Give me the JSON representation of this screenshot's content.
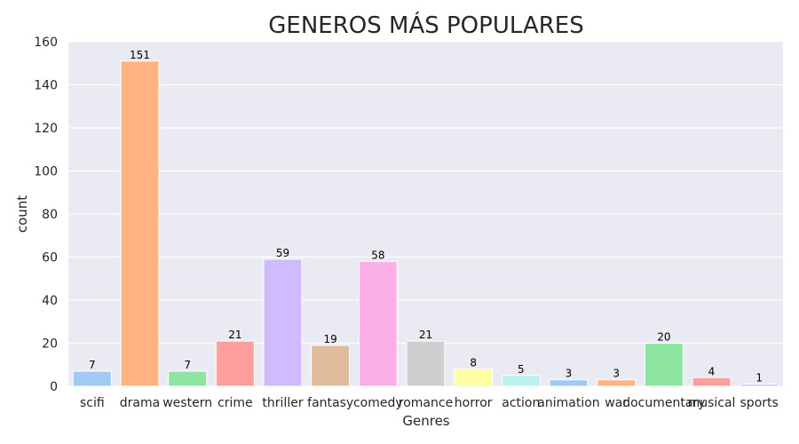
{
  "chart_data": {
    "type": "bar",
    "title": "GENEROS MÁS POPULARES",
    "xlabel": "Genres",
    "ylabel": "count",
    "categories": [
      "scifi",
      "drama",
      "western",
      "crime",
      "thriller",
      "fantasy",
      "comedy",
      "romance",
      "horror",
      "action",
      "animation",
      "war",
      "documentary",
      "musical",
      "sports"
    ],
    "values": [
      7,
      151,
      7,
      21,
      59,
      19,
      58,
      21,
      8,
      5,
      3,
      3,
      20,
      4,
      1
    ],
    "data_labels": [
      "7",
      "151",
      "7",
      "21",
      "59",
      "19",
      "58",
      "21",
      "8",
      "5",
      "3",
      "3",
      "20",
      "4",
      "1"
    ],
    "ylim": [
      0,
      160
    ],
    "yticks": [
      0,
      20,
      40,
      60,
      80,
      100,
      120,
      140,
      160
    ],
    "ytick_labels": [
      "0",
      "20",
      "40",
      "60",
      "80",
      "100",
      "120",
      "140",
      "160"
    ],
    "grid": true,
    "colors": {
      "plot_background": "#eaeaf2",
      "grid": "#ffffff",
      "bars": [
        "#a1c9f4",
        "#ffb482",
        "#8de5a1",
        "#ff9f9b",
        "#d0bbff",
        "#debb9b",
        "#fab0e4",
        "#cfcfcf",
        "#fffea3",
        "#b9f2f0",
        "#a1c9f4",
        "#ffb482",
        "#8de5a1",
        "#ff9f9b",
        "#d0bbff"
      ]
    }
  }
}
